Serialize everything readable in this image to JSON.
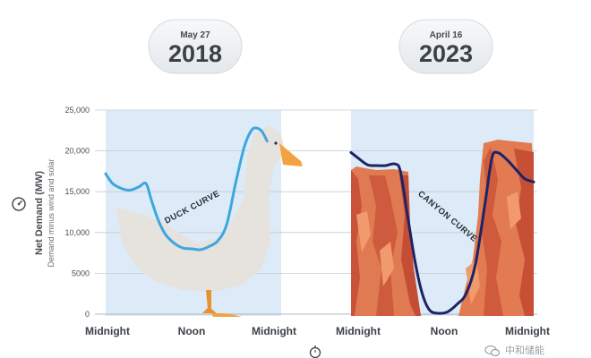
{
  "chart_data": {
    "type": "line",
    "ylabel": "Net Demand (MW)",
    "ysublabel": "Demand minus wind and solar",
    "ylim": [
      0,
      25000
    ],
    "yticks": [
      "25,000",
      "20,000",
      "15,000",
      "10,000",
      "5000",
      "0"
    ],
    "xticks": [
      "Midnight",
      "Noon",
      "Midnight"
    ],
    "grid": true,
    "panels": [
      {
        "date": "May 27",
        "year": "2018",
        "curve_label": "DUCK CURVE",
        "color": "#3ea6de",
        "series": [
          {
            "t": 0.0,
            "y": 17200
          },
          {
            "t": 0.04,
            "y": 16000
          },
          {
            "t": 0.09,
            "y": 15400
          },
          {
            "t": 0.14,
            "y": 15200
          },
          {
            "t": 0.19,
            "y": 15600
          },
          {
            "t": 0.23,
            "y": 16000
          },
          {
            "t": 0.26,
            "y": 14000
          },
          {
            "t": 0.3,
            "y": 11500
          },
          {
            "t": 0.34,
            "y": 9800
          },
          {
            "t": 0.39,
            "y": 8700
          },
          {
            "t": 0.44,
            "y": 8100
          },
          {
            "t": 0.49,
            "y": 8000
          },
          {
            "t": 0.54,
            "y": 7900
          },
          {
            "t": 0.59,
            "y": 8300
          },
          {
            "t": 0.64,
            "y": 9000
          },
          {
            "t": 0.69,
            "y": 11000
          },
          {
            "t": 0.74,
            "y": 16000
          },
          {
            "t": 0.79,
            "y": 20500
          },
          {
            "t": 0.83,
            "y": 22500
          },
          {
            "t": 0.86,
            "y": 22800
          },
          {
            "t": 0.89,
            "y": 22400
          },
          {
            "t": 0.92,
            "y": 21200
          }
        ]
      },
      {
        "date": "April 16",
        "year": "2023",
        "curve_label": "CANYON CURVE",
        "color": "#1c2466",
        "series": [
          {
            "t": 0.0,
            "y": 19800
          },
          {
            "t": 0.04,
            "y": 19100
          },
          {
            "t": 0.09,
            "y": 18300
          },
          {
            "t": 0.14,
            "y": 18200
          },
          {
            "t": 0.19,
            "y": 18200
          },
          {
            "t": 0.24,
            "y": 18400
          },
          {
            "t": 0.27,
            "y": 17500
          },
          {
            "t": 0.31,
            "y": 12000
          },
          {
            "t": 0.35,
            "y": 6500
          },
          {
            "t": 0.39,
            "y": 2500
          },
          {
            "t": 0.43,
            "y": 500
          },
          {
            "t": 0.48,
            "y": 100
          },
          {
            "t": 0.53,
            "y": 300
          },
          {
            "t": 0.58,
            "y": 1200
          },
          {
            "t": 0.63,
            "y": 2500
          },
          {
            "t": 0.68,
            "y": 6000
          },
          {
            "t": 0.73,
            "y": 13000
          },
          {
            "t": 0.77,
            "y": 19000
          },
          {
            "t": 0.8,
            "y": 19800
          },
          {
            "t": 0.85,
            "y": 19000
          },
          {
            "t": 0.9,
            "y": 17800
          },
          {
            "t": 0.95,
            "y": 16600
          },
          {
            "t": 1.0,
            "y": 16200
          }
        ]
      }
    ]
  },
  "watermark": "中和储能",
  "colors": {
    "panel_bg": "#dcebf7",
    "duck_body": "#e6e2de",
    "duck_feet": "#f2a341",
    "canyon_dark": "#d9623d",
    "canyon_light": "#eb8a5f",
    "badge_bg": "#eef1f3"
  },
  "icons": [
    "gauge-icon",
    "stopwatch-icon",
    "wechat-logo-icon"
  ]
}
